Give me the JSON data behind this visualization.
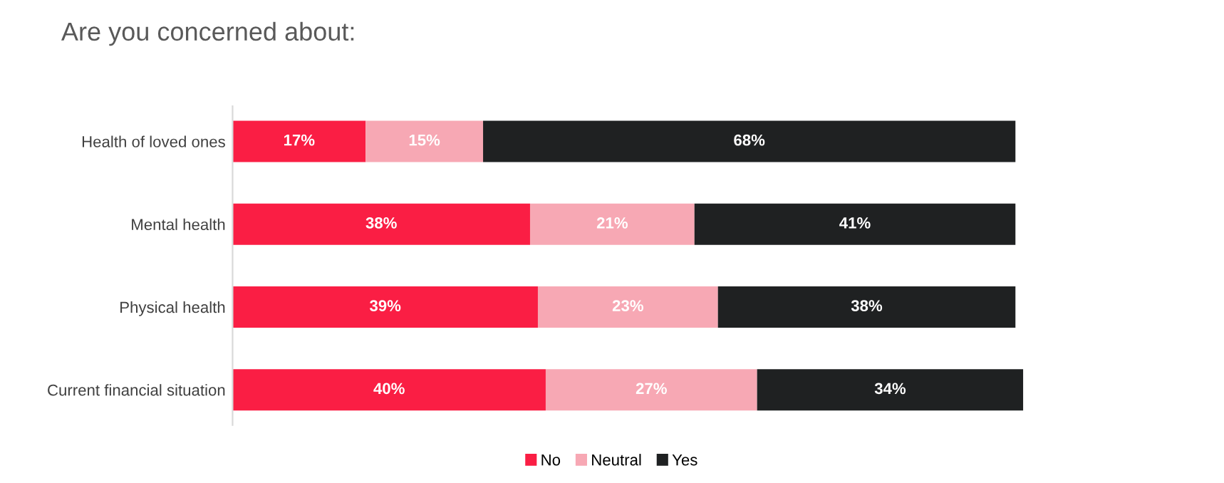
{
  "chart_data": {
    "type": "bar",
    "orientation": "horizontal",
    "stacked": true,
    "title": "Are you concerned about:",
    "categories": [
      "Health of loved ones",
      "Mental health",
      "Physical health",
      "Current financial situation"
    ],
    "series": [
      {
        "name": "No",
        "color": "#fa1e44",
        "values": [
          17,
          38,
          39,
          40
        ],
        "value_labels": [
          "17%",
          "38%",
          "39%",
          "40%"
        ]
      },
      {
        "name": "Neutral",
        "color": "#f7a8b4",
        "values": [
          15,
          21,
          23,
          27
        ],
        "value_labels": [
          "15%",
          "21%",
          "23%",
          "27%"
        ]
      },
      {
        "name": "Yes",
        "color": "#1f2122",
        "values": [
          68,
          41,
          38,
          34
        ],
        "value_labels": [
          "68%",
          "41%",
          "38%",
          "34%"
        ]
      }
    ],
    "legend": "bottom",
    "tick_labels": "y",
    "grid": false
  }
}
